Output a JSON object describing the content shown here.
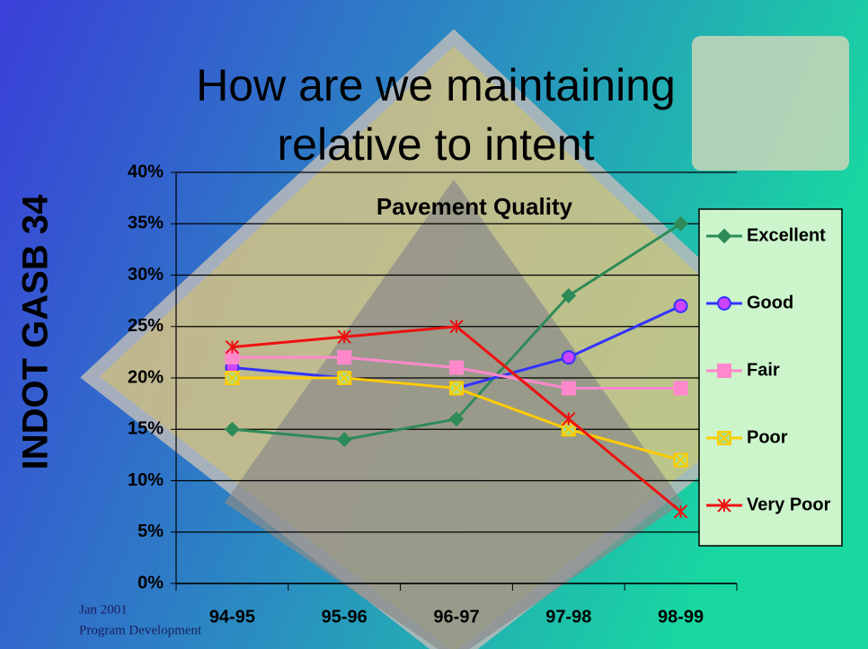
{
  "slide": {
    "title": "How are we maintaining relative to intent",
    "side_label": "INDOT  GASB 34",
    "footer": [
      "Jan 2001",
      "Program Development"
    ]
  },
  "chart_data": {
    "type": "line",
    "title": "Pavement Quality",
    "categories": [
      "94-95",
      "95-96",
      "96-97",
      "97-98",
      "98-99"
    ],
    "series": [
      {
        "name": "Excellent",
        "color": "#2e8b57",
        "marker": "diamond",
        "values": [
          15,
          14,
          16,
          28,
          35
        ]
      },
      {
        "name": "Good",
        "color": "#3333ff",
        "marker": "circle",
        "values": [
          21,
          20,
          19,
          22,
          27
        ]
      },
      {
        "name": "Fair",
        "color": "#ff88cc",
        "marker": "square",
        "values": [
          22,
          22,
          21,
          19,
          19
        ]
      },
      {
        "name": "Poor",
        "color": "#ffcc00",
        "marker": "xsquare",
        "values": [
          20,
          20,
          19,
          15,
          12
        ]
      },
      {
        "name": "Very Poor",
        "color": "#ee1111",
        "marker": "star",
        "values": [
          23,
          24,
          25,
          16,
          7
        ]
      }
    ],
    "ylim": [
      0,
      40
    ],
    "yticks": [
      {
        "value": 0,
        "label": "0%"
      },
      {
        "value": 5,
        "label": "5%"
      },
      {
        "value": 10,
        "label": "10%"
      },
      {
        "value": 15,
        "label": "15%"
      },
      {
        "value": 20,
        "label": "20%"
      },
      {
        "value": 25,
        "label": "25%"
      },
      {
        "value": 30,
        "label": "30%"
      },
      {
        "value": 35,
        "label": "35%"
      },
      {
        "value": 40,
        "label": "40%"
      }
    ],
    "grid": true,
    "legend": "right"
  }
}
